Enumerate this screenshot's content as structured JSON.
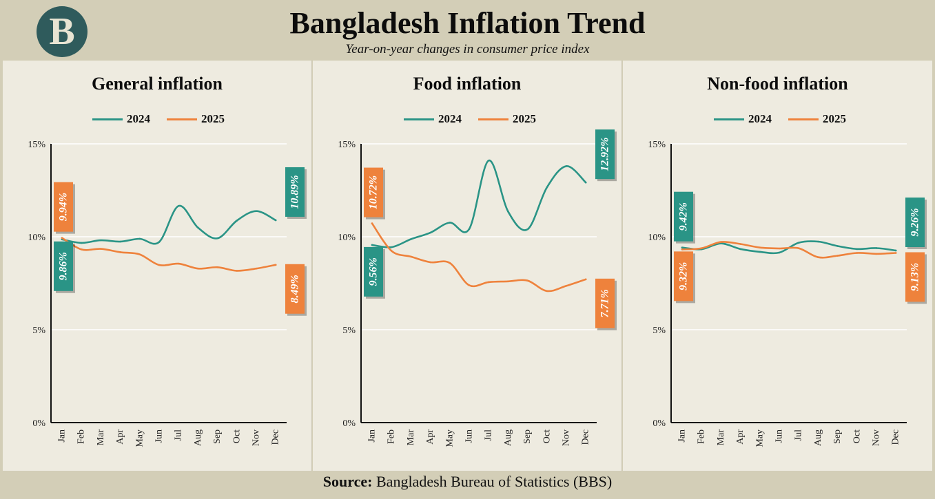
{
  "header": {
    "logo_letter": "B",
    "title": "Bangladesh Inflation Trend",
    "subtitle": "Year-on-year changes in consumer price index"
  },
  "footer": {
    "source_label": "Source:",
    "source_text": "Bangladesh Bureau of Statistics (BBS)"
  },
  "colors": {
    "series_2024": "#2a9486",
    "series_2025": "#ee823c",
    "background": "#d3ceb7",
    "panel": "#eeebe0"
  },
  "chart_data": [
    {
      "type": "line",
      "title": "General inflation",
      "categories": [
        "Jan",
        "Feb",
        "Mar",
        "Apr",
        "May",
        "Jun",
        "Jul",
        "Aug",
        "Sep",
        "Oct",
        "Nov",
        "Dec"
      ],
      "yticks": [
        "0%",
        "5%",
        "10%",
        "15%"
      ],
      "ylim": [
        0,
        15
      ],
      "series": [
        {
          "name": "2024",
          "values": [
            9.86,
            9.67,
            9.81,
            9.74,
            9.89,
            9.72,
            11.66,
            10.49,
            9.92,
            10.87,
            11.38,
            10.89
          ],
          "start_label": "9.86%",
          "end_label": "10.89%"
        },
        {
          "name": "2025",
          "values": [
            9.94,
            9.32,
            9.35,
            9.17,
            9.05,
            8.48,
            8.55,
            8.29,
            8.36,
            8.17,
            8.29,
            8.49
          ],
          "start_label": "9.94%",
          "end_label": "8.49%"
        }
      ]
    },
    {
      "type": "line",
      "title": "Food inflation",
      "categories": [
        "Jan",
        "Feb",
        "Mar",
        "Apr",
        "May",
        "Jun",
        "Jul",
        "Aug",
        "Sep",
        "Oct",
        "Nov",
        "Dec"
      ],
      "yticks": [
        "0%",
        "5%",
        "10%",
        "15%"
      ],
      "ylim": [
        0,
        15
      ],
      "series": [
        {
          "name": "2024",
          "values": [
            9.56,
            9.44,
            9.87,
            10.22,
            10.76,
            10.42,
            14.1,
            11.36,
            10.4,
            12.66,
            13.8,
            12.92
          ],
          "start_label": "9.56%",
          "end_label": "12.92%"
        },
        {
          "name": "2025",
          "values": [
            10.72,
            9.24,
            8.93,
            8.63,
            8.59,
            7.39,
            7.56,
            7.6,
            7.64,
            7.08,
            7.36,
            7.71
          ],
          "start_label": "10.72%",
          "end_label": "7.71%"
        }
      ]
    },
    {
      "type": "line",
      "title": "Non-food inflation",
      "categories": [
        "Jan",
        "Feb",
        "Mar",
        "Apr",
        "May",
        "Jun",
        "Jul",
        "Aug",
        "Sep",
        "Oct",
        "Nov",
        "Dec"
      ],
      "yticks": [
        "0%",
        "5%",
        "10%",
        "15%"
      ],
      "ylim": [
        0,
        15
      ],
      "series": [
        {
          "name": "2024",
          "values": [
            9.42,
            9.33,
            9.64,
            9.34,
            9.19,
            9.15,
            9.68,
            9.74,
            9.5,
            9.34,
            9.39,
            9.26
          ],
          "start_label": "9.42%",
          "end_label": "9.26%"
        },
        {
          "name": "2025",
          "values": [
            9.32,
            9.38,
            9.72,
            9.61,
            9.42,
            9.37,
            9.38,
            8.9,
            8.98,
            9.13,
            9.08,
            9.13
          ],
          "start_label": "9.32%",
          "end_label": "9.13%"
        }
      ]
    }
  ]
}
